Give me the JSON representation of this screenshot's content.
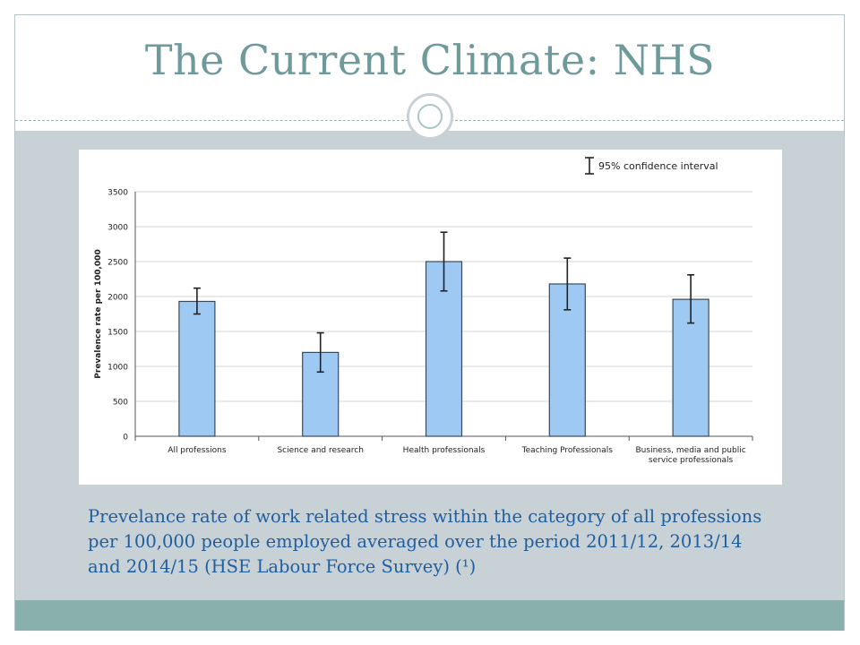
{
  "slide": {
    "title": "The Current Climate: NHS",
    "caption": "Prevelance rate of work related stress within the category of all professions per 100,000 people employed averaged over the period 2011/12, 2013/14 and 2014/15 (HSE Labour Force Survey) (¹)"
  },
  "colors": {
    "bar_fill": "#9ec9f2",
    "bar_stroke": "#3a4a5a",
    "title": "#6f9a9c",
    "caption": "#1f5fa0",
    "content_bg": "#c8d1d6",
    "footer_bg": "#8ab0ad"
  },
  "chart_data": {
    "type": "bar",
    "ylabel": "Prevalence rate per 100,000",
    "legend": "95% confidence interval",
    "legend_position": "top-right",
    "ylim": [
      0,
      3500
    ],
    "yticks": [
      0,
      500,
      1000,
      1500,
      2000,
      2500,
      3000,
      3500
    ],
    "grid": true,
    "categories": [
      "All professions",
      "Science and research",
      "Health professionals",
      "Teaching Professionals",
      "Business, media and public service professionals"
    ],
    "category_lines": [
      [
        "All professions"
      ],
      [
        "Science and research"
      ],
      [
        "Health professionals"
      ],
      [
        "Teaching Professionals"
      ],
      [
        "Business, media and public",
        "service professionals"
      ]
    ],
    "values": [
      1930,
      1200,
      2500,
      2180,
      1960
    ],
    "ci_low": [
      1750,
      920,
      2080,
      1810,
      1620
    ],
    "ci_high": [
      2120,
      1480,
      2920,
      2550,
      2310
    ]
  }
}
